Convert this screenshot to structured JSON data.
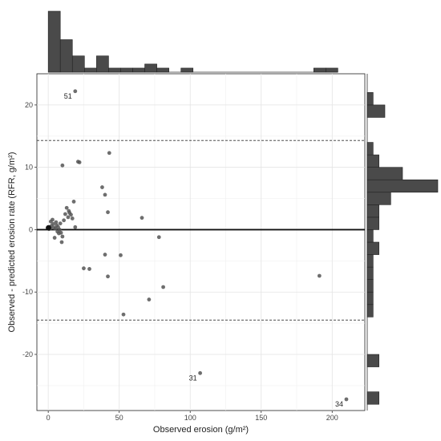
{
  "chart_data": {
    "type": "scatter",
    "xlabel": "Observed erosion (g/m²)",
    "ylabel": "Observed - predicted erosion rate (RFR, g/m²)",
    "xlim": [
      -8,
      223
    ],
    "ylim": [
      -29,
      25
    ],
    "x_ticks": [
      0,
      50,
      100,
      150,
      200
    ],
    "y_ticks": [
      -20,
      -10,
      0,
      10,
      20
    ],
    "grid": true,
    "reference_lines": {
      "zero": 0,
      "upper_limit": 14.3,
      "lower_limit": -14.5
    },
    "x": [
      0.3,
      0.6,
      1.0,
      1.4,
      1.8,
      2.2,
      3.0,
      3.5,
      4.0,
      4.5,
      5.0,
      5.5,
      6.0,
      6.5,
      7.0,
      7.5,
      8.0,
      8.5,
      9.0,
      9.5,
      10.0,
      11.0,
      12.0,
      13.0,
      14.0,
      14.5,
      15.0,
      16.0,
      17.0,
      18.0,
      19.0,
      10.0,
      21.0,
      22.0,
      19.0,
      25.0,
      29.0,
      38.0,
      40.0,
      40.0,
      42.0,
      42.0,
      43.0,
      51.0,
      53.0,
      66.0,
      71.0,
      78.0,
      81.0,
      107.0,
      191.0,
      210.0
    ],
    "y": [
      0.3,
      0.1,
      0.4,
      0.2,
      1.3,
      0.6,
      1.6,
      0.9,
      0.3,
      -1.3,
      0.2,
      1.2,
      0.7,
      -0.3,
      0.4,
      -0.6,
      0.0,
      1.0,
      -0.5,
      -2.0,
      -1.1,
      1.5,
      2.5,
      3.5,
      2.0,
      3.0,
      2.7,
      2.4,
      1.8,
      4.5,
      0.4,
      10.3,
      10.9,
      10.8,
      22.2,
      -6.2,
      -6.3,
      6.8,
      -4.0,
      5.6,
      2.8,
      -7.5,
      12.3,
      -4.1,
      -13.6,
      1.9,
      -11.2,
      -1.2,
      -9.2,
      -23.0,
      -7.4,
      -27.2
    ],
    "annotations": [
      {
        "text": "51",
        "x": 19.0,
        "y": 22.2
      },
      {
        "text": "31",
        "x": 107.0,
        "y": -23.0
      },
      {
        "text": "34",
        "x": 210.0,
        "y": -27.2
      }
    ],
    "marginal_x_histogram": {
      "bin_width": 8.5,
      "bin_start": 0,
      "counts": [
        15,
        8,
        4,
        1,
        4,
        1,
        1,
        1,
        2,
        1,
        0,
        1,
        0,
        0,
        0,
        0,
        0,
        0,
        0,
        0,
        0,
        0,
        1,
        1
      ]
    },
    "marginal_y_histogram": {
      "bin_height": 2.0,
      "bin_start": -28,
      "counts": [
        2,
        0,
        0,
        2,
        0,
        0,
        0,
        1,
        1,
        1,
        1,
        1,
        2,
        1,
        2,
        2,
        4,
        12,
        6,
        2,
        1,
        0,
        0,
        3,
        1,
        0,
        0,
        0,
        0
      ]
    }
  }
}
